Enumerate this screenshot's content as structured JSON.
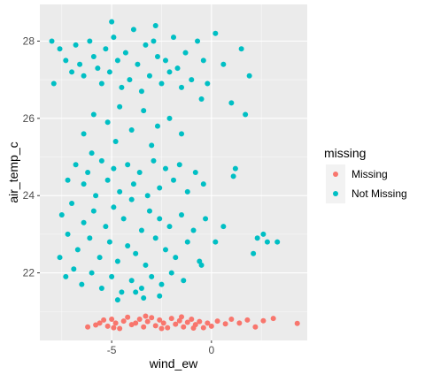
{
  "chart_data": {
    "type": "scatter",
    "title": "",
    "xlabel": "wind_ew",
    "ylabel": "air_temp_c",
    "xlim": [
      -8.6,
      4.8
    ],
    "ylim": [
      20.25,
      28.95
    ],
    "x_ticks": [
      -5,
      0
    ],
    "y_ticks": [
      22,
      24,
      26,
      28
    ],
    "grid": true,
    "legend": {
      "title": "missing",
      "position": "right"
    },
    "series": [
      {
        "name": "Missing",
        "color": "#F8766D",
        "points": [
          [
            -6.2,
            20.6
          ],
          [
            -5.8,
            20.65
          ],
          [
            -5.4,
            20.78
          ],
          [
            -5.2,
            20.62
          ],
          [
            -5.0,
            20.8
          ],
          [
            -4.8,
            20.7
          ],
          [
            -4.6,
            20.56
          ],
          [
            -4.4,
            20.75
          ],
          [
            -4.2,
            20.85
          ],
          [
            -4.0,
            20.66
          ],
          [
            -3.8,
            20.7
          ],
          [
            -3.6,
            20.8
          ],
          [
            -3.4,
            20.6
          ],
          [
            -3.2,
            20.74
          ],
          [
            -3.0,
            20.84
          ],
          [
            -2.8,
            20.63
          ],
          [
            -2.6,
            20.78
          ],
          [
            -2.4,
            20.7
          ],
          [
            -2.2,
            20.58
          ],
          [
            -2.0,
            20.82
          ],
          [
            -1.8,
            20.67
          ],
          [
            -1.6,
            20.76
          ],
          [
            -1.4,
            20.6
          ],
          [
            -1.2,
            20.72
          ],
          [
            -1.0,
            20.8
          ],
          [
            -0.8,
            20.66
          ],
          [
            -0.6,
            20.74
          ],
          [
            -0.4,
            20.58
          ],
          [
            -0.2,
            20.7
          ],
          [
            0.0,
            20.62
          ],
          [
            0.3,
            20.75
          ],
          [
            0.7,
            20.68
          ],
          [
            1.0,
            20.8
          ],
          [
            1.4,
            20.7
          ],
          [
            1.8,
            20.78
          ],
          [
            2.2,
            20.6
          ],
          [
            2.6,
            20.76
          ],
          [
            3.1,
            20.82
          ],
          [
            4.3,
            20.69
          ],
          [
            -5.6,
            20.7
          ],
          [
            -4.9,
            20.58
          ],
          [
            -3.3,
            20.88
          ],
          [
            -2.5,
            20.56
          ],
          [
            -1.5,
            20.86
          ],
          [
            -0.9,
            20.57
          ]
        ]
      },
      {
        "name": "Not Missing",
        "color": "#00BFC4",
        "points": [
          [
            -8.0,
            28.0
          ],
          [
            -7.6,
            27.8
          ],
          [
            -7.3,
            27.5
          ],
          [
            -7.9,
            26.9
          ],
          [
            -7.0,
            27.2
          ],
          [
            -6.8,
            27.9
          ],
          [
            -6.6,
            27.4
          ],
          [
            -6.4,
            27.1
          ],
          [
            -6.1,
            28.0
          ],
          [
            -5.9,
            27.6
          ],
          [
            -5.7,
            27.3
          ],
          [
            -5.5,
            26.9
          ],
          [
            -5.3,
            27.8
          ],
          [
            -5.1,
            27.2
          ],
          [
            -4.9,
            28.1
          ],
          [
            -4.7,
            27.5
          ],
          [
            -4.5,
            26.8
          ],
          [
            -4.3,
            27.7
          ],
          [
            -4.1,
            27.0
          ],
          [
            -3.9,
            28.3
          ],
          [
            -3.7,
            27.4
          ],
          [
            -3.5,
            26.7
          ],
          [
            -3.3,
            27.9
          ],
          [
            -3.1,
            27.1
          ],
          [
            -2.9,
            28.0
          ],
          [
            -2.7,
            27.6
          ],
          [
            -2.5,
            26.9
          ],
          [
            -2.3,
            27.5
          ],
          [
            -2.1,
            27.2
          ],
          [
            -1.9,
            28.1
          ],
          [
            -1.7,
            27.3
          ],
          [
            -1.5,
            26.8
          ],
          [
            -1.3,
            27.7
          ],
          [
            -1.0,
            27.0
          ],
          [
            -0.7,
            28.0
          ],
          [
            -0.4,
            27.5
          ],
          [
            -0.2,
            26.9
          ],
          [
            0.2,
            28.2
          ],
          [
            0.6,
            27.4
          ],
          [
            1.0,
            26.4
          ],
          [
            1.5,
            27.8
          ],
          [
            1.7,
            26.1
          ],
          [
            1.9,
            27.1
          ],
          [
            -5.0,
            28.5
          ],
          [
            -2.8,
            28.4
          ],
          [
            -5.9,
            26.1
          ],
          [
            -5.2,
            25.9
          ],
          [
            -4.6,
            26.3
          ],
          [
            -4.0,
            25.7
          ],
          [
            -3.4,
            26.2
          ],
          [
            -2.7,
            25.8
          ],
          [
            -2.1,
            26.0
          ],
          [
            -1.5,
            25.6
          ],
          [
            -6.4,
            25.6
          ],
          [
            -0.5,
            26.5
          ],
          [
            -4.8,
            25.4
          ],
          [
            -3.0,
            25.3
          ],
          [
            -6.8,
            24.8
          ],
          [
            -6.4,
            24.3
          ],
          [
            -6.2,
            24.6
          ],
          [
            -5.8,
            24.0
          ],
          [
            -5.5,
            24.9
          ],
          [
            -5.2,
            24.4
          ],
          [
            -4.9,
            24.7
          ],
          [
            -4.6,
            24.1
          ],
          [
            -4.2,
            24.8
          ],
          [
            -3.9,
            24.3
          ],
          [
            -3.6,
            24.6
          ],
          [
            -3.2,
            24.0
          ],
          [
            -2.9,
            24.9
          ],
          [
            -2.6,
            24.2
          ],
          [
            -2.3,
            24.7
          ],
          [
            -1.9,
            24.4
          ],
          [
            -1.6,
            24.8
          ],
          [
            -1.2,
            24.1
          ],
          [
            -0.8,
            24.6
          ],
          [
            -0.4,
            24.3
          ],
          [
            -7.5,
            23.5
          ],
          [
            -7.2,
            23.0
          ],
          [
            -7.0,
            23.8
          ],
          [
            -6.7,
            22.6
          ],
          [
            -6.4,
            23.3
          ],
          [
            -6.1,
            22.9
          ],
          [
            -5.9,
            23.6
          ],
          [
            -5.6,
            22.4
          ],
          [
            -5.3,
            23.2
          ],
          [
            -5.1,
            22.8
          ],
          [
            -4.9,
            23.7
          ],
          [
            -4.7,
            22.3
          ],
          [
            -4.4,
            23.4
          ],
          [
            -4.2,
            22.7
          ],
          [
            -4.0,
            23.9
          ],
          [
            -3.8,
            22.5
          ],
          [
            -3.5,
            23.1
          ],
          [
            -3.3,
            22.2
          ],
          [
            -3.1,
            23.6
          ],
          [
            -2.8,
            22.9
          ],
          [
            -2.6,
            23.4
          ],
          [
            -2.3,
            22.6
          ],
          [
            -2.1,
            23.2
          ],
          [
            -1.8,
            22.4
          ],
          [
            -1.5,
            23.5
          ],
          [
            -1.2,
            22.8
          ],
          [
            -0.9,
            23.1
          ],
          [
            -0.6,
            22.3
          ],
          [
            -0.3,
            23.4
          ],
          [
            0.2,
            22.8
          ],
          [
            -7.6,
            22.4
          ],
          [
            -7.3,
            21.9
          ],
          [
            -6.9,
            22.1
          ],
          [
            -6.5,
            21.7
          ],
          [
            -6.0,
            22.0
          ],
          [
            -5.5,
            21.6
          ],
          [
            -5.0,
            21.9
          ],
          [
            -4.5,
            21.5
          ],
          [
            -4.0,
            21.8
          ],
          [
            -3.5,
            21.6
          ],
          [
            -3.0,
            21.9
          ],
          [
            -2.5,
            21.7
          ],
          [
            -2.0,
            22.0
          ],
          [
            -1.4,
            21.8
          ],
          [
            -0.5,
            22.2
          ],
          [
            -3.8,
            21.5
          ],
          [
            -2.6,
            21.4
          ],
          [
            -4.7,
            21.3
          ],
          [
            -3.4,
            21.35
          ],
          [
            1.2,
            24.7
          ],
          [
            2.1,
            22.5
          ],
          [
            2.3,
            22.9
          ],
          [
            2.8,
            22.8
          ],
          [
            2.6,
            23.0
          ],
          [
            3.3,
            22.8
          ],
          [
            0.6,
            23.2
          ],
          [
            1.1,
            24.5
          ],
          [
            -7.2,
            24.4
          ],
          [
            -6.0,
            25.1
          ]
        ]
      }
    ]
  }
}
